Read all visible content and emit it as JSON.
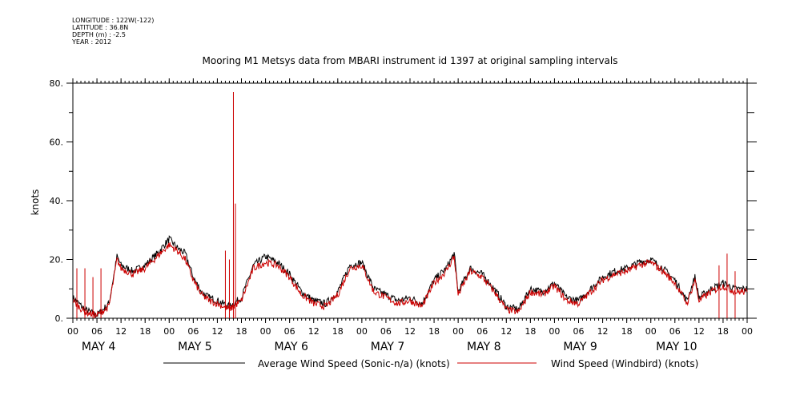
{
  "header": {
    "longitude": "LONGITUDE : 122W(-122)",
    "latitude": "LATITUDE : 36.8N",
    "depth": "DEPTH (m) : -2.5",
    "year": "YEAR : 2012"
  },
  "chart_data": {
    "type": "line",
    "title": "Mooring M1 Metsys data from MBARI instrument id 1397 at original sampling intervals",
    "ylabel": "knots",
    "xlabel": "",
    "ylim": [
      0,
      80
    ],
    "yticks": [
      0,
      20,
      40,
      60,
      80
    ],
    "ytick_labels": [
      "0.",
      "20.",
      "40.",
      "60.",
      "80."
    ],
    "xlim_hours": [
      0,
      168
    ],
    "hour_tick_labels": [
      "00",
      "06",
      "12",
      "18",
      "00",
      "06",
      "12",
      "18",
      "00",
      "06",
      "12",
      "18",
      "00",
      "06",
      "12",
      "18",
      "00",
      "06",
      "12",
      "18",
      "00",
      "06",
      "12",
      "18",
      "00",
      "06",
      "12",
      "18",
      "00"
    ],
    "day_labels": [
      {
        "text": "MAY  4",
        "day": "2012-05-04"
      },
      {
        "text": "MAY  5",
        "day": "2012-05-05"
      },
      {
        "text": "MAY  6",
        "day": "2012-05-06"
      },
      {
        "text": "MAY  7",
        "day": "2012-05-07"
      },
      {
        "text": "MAY  8",
        "day": "2012-05-08"
      },
      {
        "text": "MAY  9",
        "day": "2012-05-09"
      },
      {
        "text": "MAY 10",
        "day": "2012-05-10"
      }
    ],
    "legend_position": "bottom",
    "series": [
      {
        "name": "Average Wind Speed (Sonic-n/a) (knots)",
        "color": "#000000",
        "x": [
          "2012-05-04 00:00",
          "2012-05-04 03:00",
          "2012-05-04 06:00",
          "2012-05-04 09:00",
          "2012-05-04 11:00",
          "2012-05-04 12:00",
          "2012-05-04 15:00",
          "2012-05-04 18:00",
          "2012-05-04 21:00",
          "2012-05-05 00:00",
          "2012-05-05 02:00",
          "2012-05-05 04:00",
          "2012-05-05 06:00",
          "2012-05-05 08:00",
          "2012-05-05 10:00",
          "2012-05-05 12:00",
          "2012-05-05 15:00",
          "2012-05-05 18:00",
          "2012-05-05 21:00",
          "2012-05-06 00:00",
          "2012-05-06 03:00",
          "2012-05-06 06:00",
          "2012-05-06 09:00",
          "2012-05-06 12:00",
          "2012-05-06 15:00",
          "2012-05-06 18:00",
          "2012-05-06 21:00",
          "2012-05-07 00:00",
          "2012-05-07 03:00",
          "2012-05-07 06:00",
          "2012-05-07 09:00",
          "2012-05-07 12:00",
          "2012-05-07 15:00",
          "2012-05-07 18:00",
          "2012-05-07 21:00",
          "2012-05-07 23:00",
          "2012-05-08 00:00",
          "2012-05-08 03:00",
          "2012-05-08 06:00",
          "2012-05-08 09:00",
          "2012-05-08 12:00",
          "2012-05-08 15:00",
          "2012-05-08 18:00",
          "2012-05-08 21:00",
          "2012-05-09 00:00",
          "2012-05-09 03:00",
          "2012-05-09 06:00",
          "2012-05-09 09:00",
          "2012-05-09 12:00",
          "2012-05-09 15:00",
          "2012-05-09 18:00",
          "2012-05-09 21:00",
          "2012-05-10 00:00",
          "2012-05-10 03:00",
          "2012-05-10 06:00",
          "2012-05-10 09:00",
          "2012-05-10 11:00",
          "2012-05-10 12:00",
          "2012-05-10 15:00",
          "2012-05-10 18:00",
          "2012-05-10 21:00",
          "2012-05-11 00:00"
        ],
        "values": [
          7,
          3,
          1,
          5,
          21,
          18,
          16,
          18,
          22,
          27,
          24,
          22,
          14,
          9,
          7,
          6,
          4,
          7,
          18,
          21,
          19,
          15,
          9,
          6,
          5,
          9,
          18,
          19,
          10,
          8,
          6,
          7,
          5,
          13,
          17,
          22,
          9,
          17,
          15,
          10,
          4,
          3,
          10,
          9,
          12,
          7,
          6,
          10,
          14,
          16,
          17,
          19,
          20,
          17,
          13,
          6,
          14,
          7,
          10,
          12,
          10,
          10
        ]
      },
      {
        "name": "Wind Speed (Windbird) (knots)",
        "color": "#cc0000",
        "x": [
          "2012-05-04 00:00",
          "2012-05-04 03:00",
          "2012-05-04 06:00",
          "2012-05-04 09:00",
          "2012-05-04 11:00",
          "2012-05-04 12:00",
          "2012-05-04 15:00",
          "2012-05-04 18:00",
          "2012-05-04 21:00",
          "2012-05-05 00:00",
          "2012-05-05 02:00",
          "2012-05-05 04:00",
          "2012-05-05 06:00",
          "2012-05-05 08:00",
          "2012-05-05 10:00",
          "2012-05-05 12:00",
          "2012-05-05 15:00",
          "2012-05-05 18:00",
          "2012-05-05 21:00",
          "2012-05-06 00:00",
          "2012-05-06 03:00",
          "2012-05-06 06:00",
          "2012-05-06 09:00",
          "2012-05-06 12:00",
          "2012-05-06 15:00",
          "2012-05-06 18:00",
          "2012-05-06 21:00",
          "2012-05-07 00:00",
          "2012-05-07 03:00",
          "2012-05-07 06:00",
          "2012-05-07 09:00",
          "2012-05-07 12:00",
          "2012-05-07 15:00",
          "2012-05-07 18:00",
          "2012-05-07 21:00",
          "2012-05-07 23:00",
          "2012-05-08 00:00",
          "2012-05-08 03:00",
          "2012-05-08 06:00",
          "2012-05-08 09:00",
          "2012-05-08 12:00",
          "2012-05-08 15:00",
          "2012-05-08 18:00",
          "2012-05-08 21:00",
          "2012-05-09 00:00",
          "2012-05-09 03:00",
          "2012-05-09 06:00",
          "2012-05-09 09:00",
          "2012-05-09 12:00",
          "2012-05-09 15:00",
          "2012-05-09 18:00",
          "2012-05-09 21:00",
          "2012-05-10 00:00",
          "2012-05-10 03:00",
          "2012-05-10 06:00",
          "2012-05-10 09:00",
          "2012-05-10 11:00",
          "2012-05-10 12:00",
          "2012-05-10 15:00",
          "2012-05-10 18:00",
          "2012-05-10 21:00",
          "2012-05-11 00:00"
        ],
        "values": [
          6,
          2,
          1,
          4,
          20,
          17,
          15,
          17,
          21,
          25,
          23,
          20,
          13,
          8,
          6,
          5,
          3,
          6,
          17,
          19,
          18,
          14,
          8,
          5,
          4,
          8,
          17,
          18,
          9,
          7,
          5,
          6,
          4,
          12,
          16,
          21,
          8,
          16,
          14,
          9,
          3,
          2,
          9,
          8,
          11,
          6,
          5,
          9,
          13,
          15,
          16,
          18,
          19,
          16,
          12,
          5,
          13,
          6,
          9,
          11,
          9,
          9
        ]
      }
    ],
    "spikes": [
      {
        "series": "Wind Speed (Windbird) (knots)",
        "x": "2012-05-04 01:00",
        "value": 17
      },
      {
        "series": "Wind Speed (Windbird) (knots)",
        "x": "2012-05-04 03:00",
        "value": 17
      },
      {
        "series": "Wind Speed (Windbird) (knots)",
        "x": "2012-05-04 05:00",
        "value": 14
      },
      {
        "series": "Wind Speed (Windbird) (knots)",
        "x": "2012-05-04 07:00",
        "value": 17
      },
      {
        "series": "Wind Speed (Windbird) (knots)",
        "x": "2012-05-05 14:00",
        "value": 23
      },
      {
        "series": "Wind Speed (Windbird) (knots)",
        "x": "2012-05-05 15:00",
        "value": 20
      },
      {
        "series": "Wind Speed (Windbird) (knots)",
        "x": "2012-05-05 16:00",
        "value": 77
      },
      {
        "series": "Wind Speed (Windbird) (knots)",
        "x": "2012-05-05 16:30",
        "value": 39
      },
      {
        "series": "Wind Speed (Windbird) (knots)",
        "x": "2012-05-10 17:00",
        "value": 18
      },
      {
        "series": "Wind Speed (Windbird) (knots)",
        "x": "2012-05-10 19:00",
        "value": 22
      },
      {
        "series": "Wind Speed (Windbird) (knots)",
        "x": "2012-05-10 21:00",
        "value": 16
      }
    ]
  }
}
